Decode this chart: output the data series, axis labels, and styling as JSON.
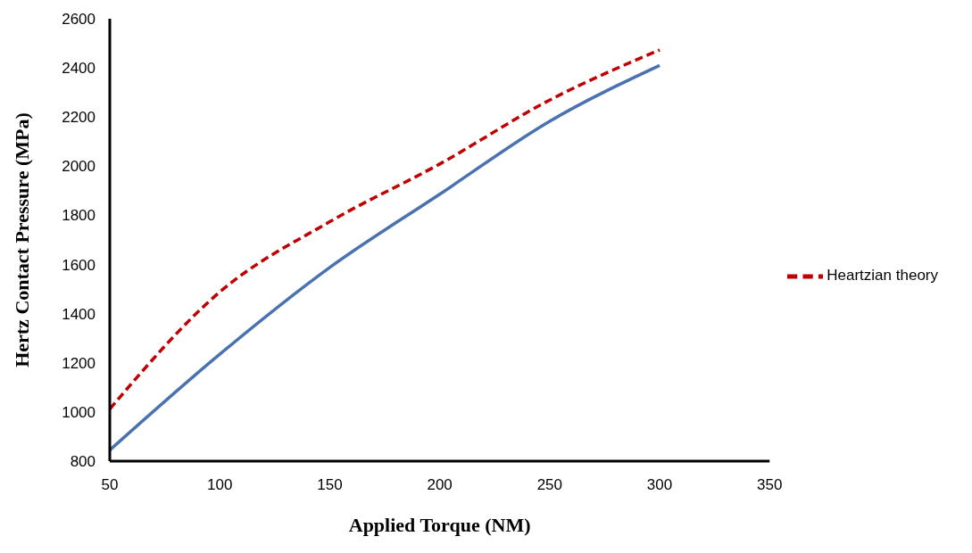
{
  "chart_data": {
    "type": "line",
    "xlabel": "Applied Torque (NM)",
    "ylabel": "Hertz Contact Pressure (MPa)",
    "x": [
      50,
      100,
      150,
      200,
      250,
      300
    ],
    "series": [
      {
        "color": "#4a72b0",
        "line_style": "solid",
        "values": [
          845,
          1235,
          1588,
          1886,
          2183,
          2410
        ]
      },
      {
        "name": "Heartzian theory",
        "color": "#c00000",
        "line_style": "dashed",
        "values": [
          1012,
          1488,
          1774,
          2009,
          2269,
          2473
        ]
      }
    ],
    "xlim": [
      50,
      350
    ],
    "xticks": [
      50,
      100,
      150,
      200,
      250,
      300,
      350
    ],
    "ylim": [
      800,
      2600
    ],
    "yticks": [
      800,
      1000,
      1200,
      1400,
      1600,
      1800,
      2000,
      2200,
      2400,
      2600
    ],
    "grid": false,
    "legend": "right",
    "marker": "none"
  }
}
